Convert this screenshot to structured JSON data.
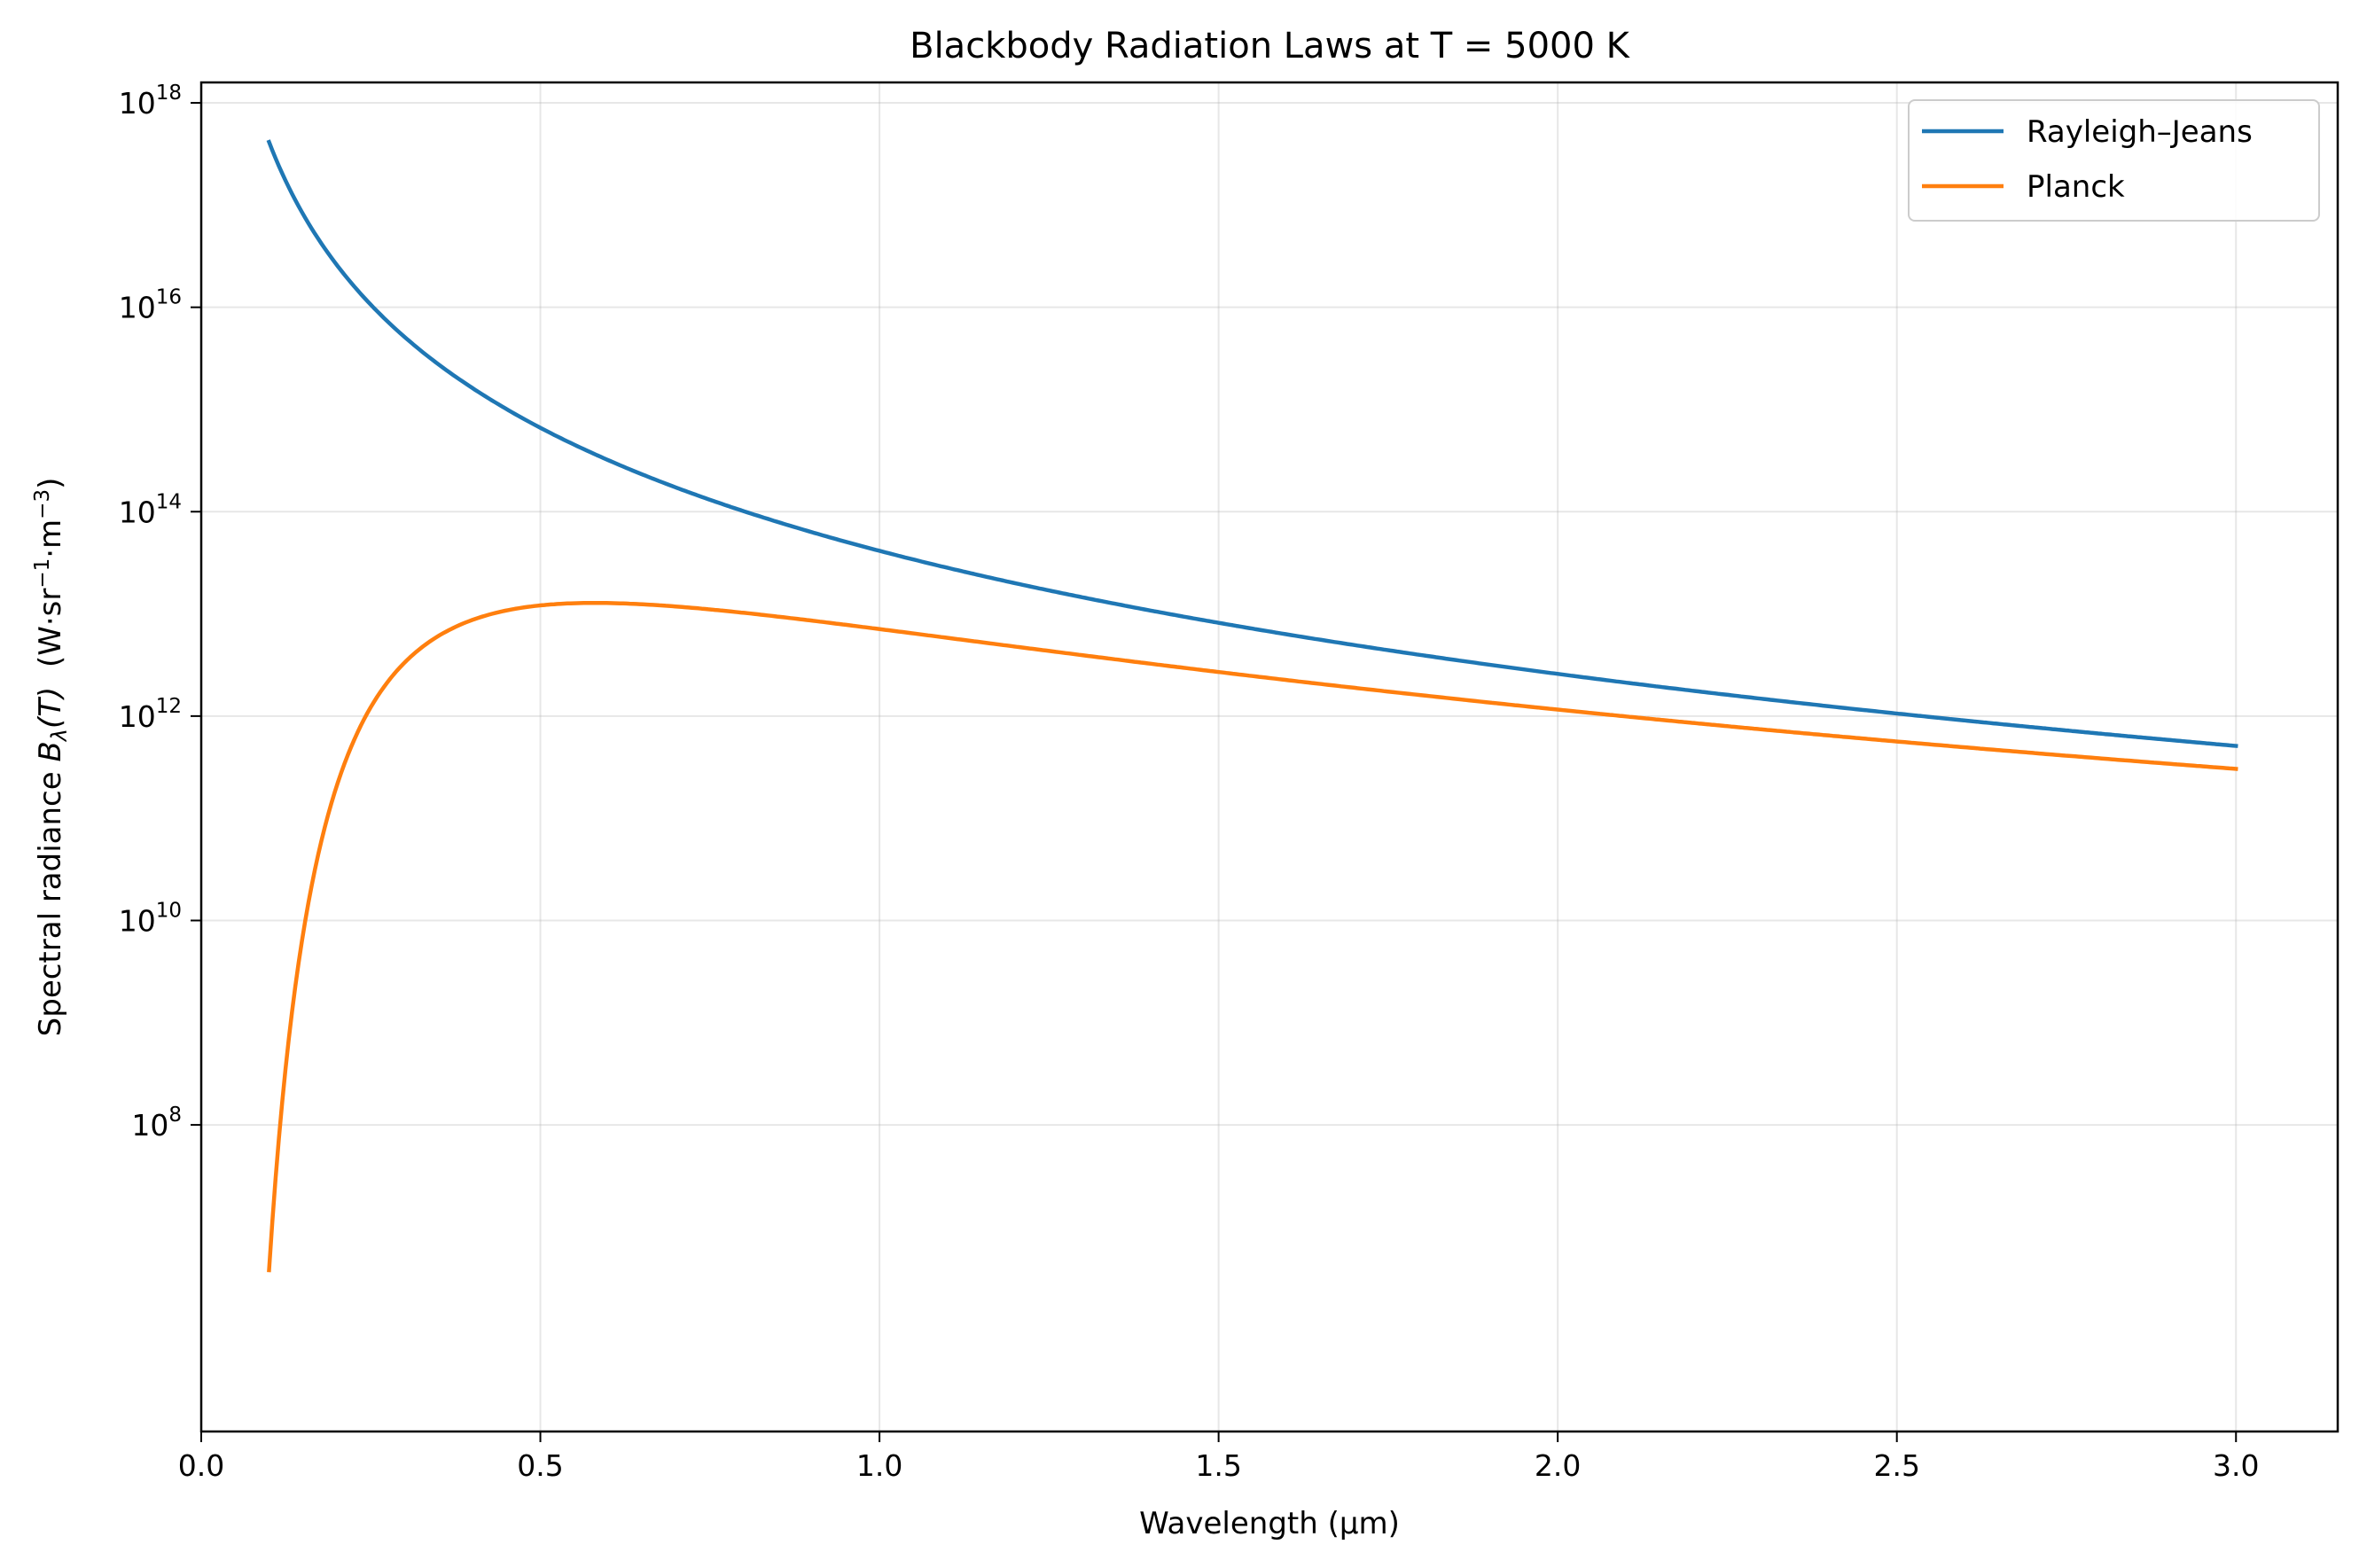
{
  "chart_data": {
    "type": "line",
    "title": "Blackbody Radiation Laws at T = 5000 K",
    "xlabel": "Wavelength (μm)",
    "ylabel_prefix": "Spectral radiance ",
    "ylabel_symbol": "B",
    "ylabel_sub": "λ",
    "ylabel_arg": "(T)",
    "ylabel_units_open": "  (W·sr",
    "ylabel_units_exp1": "−1",
    "ylabel_units_mid": "·m",
    "ylabel_units_exp2": "−3",
    "ylabel_units_close": ")",
    "temperature_K": 5000,
    "x_unit": "μm",
    "xlim": [
      0.0,
      3.15
    ],
    "ylim_log10": [
      5.0,
      18.2
    ],
    "yscale": "log",
    "x_ticks": [
      0.0,
      0.5,
      1.0,
      1.5,
      2.0,
      2.5,
      3.0
    ],
    "x_tick_labels": [
      "0.0",
      "0.5",
      "1.0",
      "1.5",
      "2.0",
      "2.5",
      "3.0"
    ],
    "y_ticks_log10": [
      8,
      10,
      12,
      14,
      16,
      18
    ],
    "y_tick_base": "10",
    "y_tick_exponents": [
      "8",
      "10",
      "12",
      "14",
      "16",
      "18"
    ],
    "grid": true,
    "legend_position": "top-right",
    "x_range_um": [
      0.1,
      3.0
    ],
    "series": [
      {
        "name": "Rayleigh–Jeans",
        "color": "#1f77b4",
        "law": "rayleigh-jeans"
      },
      {
        "name": "Planck",
        "color": "#ff7f0e",
        "law": "planck"
      }
    ]
  }
}
